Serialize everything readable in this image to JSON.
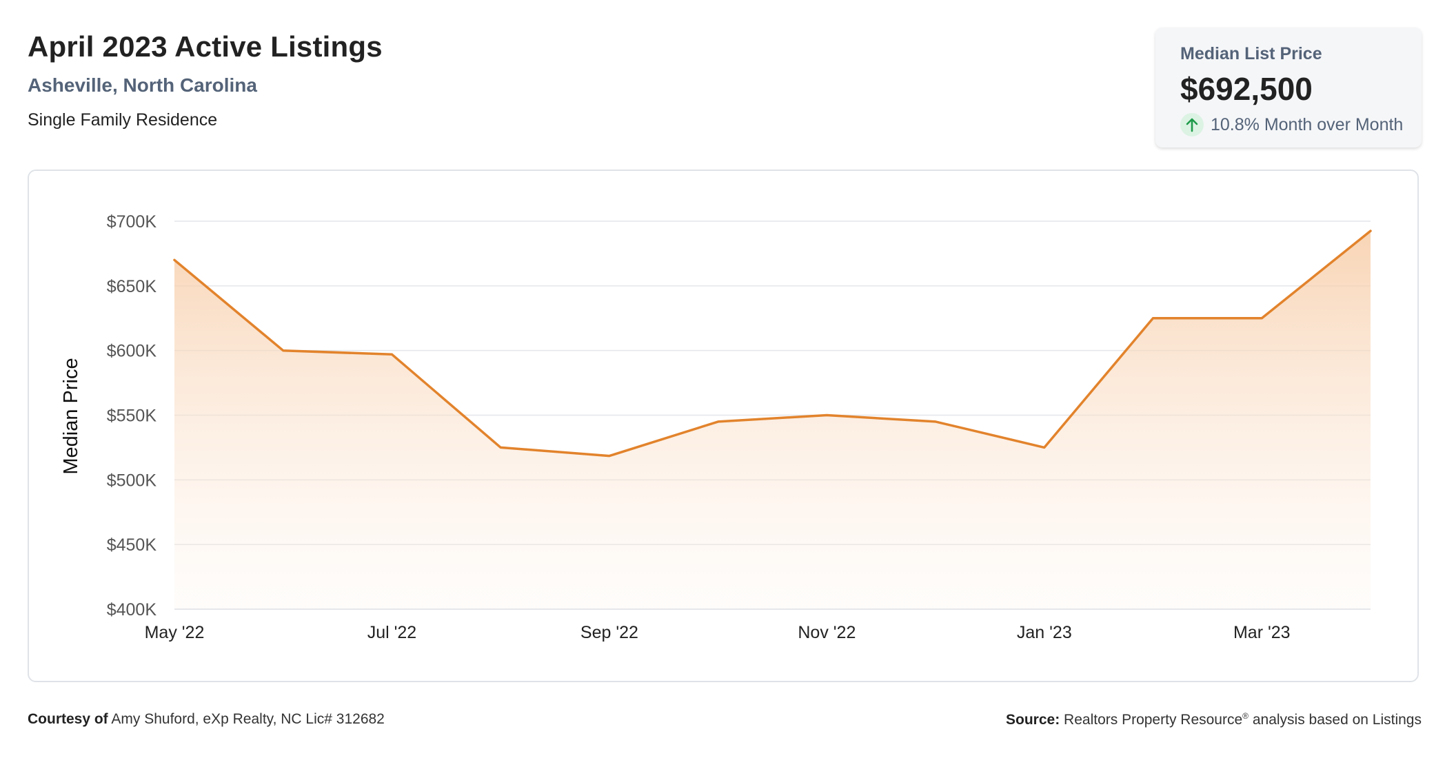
{
  "header": {
    "title": "April 2023 Active Listings",
    "location": "Asheville, North Carolina",
    "property_type": "Single Family Residence"
  },
  "stat_card": {
    "label": "Median List Price",
    "value": "$692,500",
    "change": "10.8% Month over Month",
    "change_direction": "up",
    "change_icon": "arrow-up-icon",
    "change_color": "#1e9a4a"
  },
  "chart_data": {
    "type": "area",
    "ylabel": "Median Price",
    "xlabel": "",
    "x": [
      "May '22",
      "Jun '22",
      "Jul '22",
      "Aug '22",
      "Sep '22",
      "Oct '22",
      "Nov '22",
      "Dec '22",
      "Jan '23",
      "Feb '23",
      "Mar '23",
      "Apr '23"
    ],
    "x_tick_labels": [
      "May '22",
      "Jul '22",
      "Sep '22",
      "Nov '22",
      "Jan '23",
      "Mar '23"
    ],
    "series": [
      {
        "values": [
          670000,
          600000,
          597000,
          525000,
          518500,
          545000,
          550000,
          545000,
          525000,
          625000,
          625000,
          692500
        ],
        "color": "#e2832c"
      }
    ],
    "ylim": [
      400000,
      700000
    ],
    "y_ticks": [
      400000,
      450000,
      500000,
      550000,
      600000,
      650000,
      700000
    ],
    "y_tick_labels": [
      "$400K",
      "$450K",
      "$500K",
      "$550K",
      "$600K",
      "$650K",
      "$700K"
    ],
    "grid": true,
    "legend": "none"
  },
  "footer": {
    "courtesy_label": "Courtesy of",
    "courtesy_text": "Amy Shuford, eXp Realty, NC Lic# 312682",
    "source_label": "Source:",
    "source_text_1": "Realtors Property Resource",
    "source_mark": "®",
    "source_text_2": " analysis based on Listings"
  }
}
